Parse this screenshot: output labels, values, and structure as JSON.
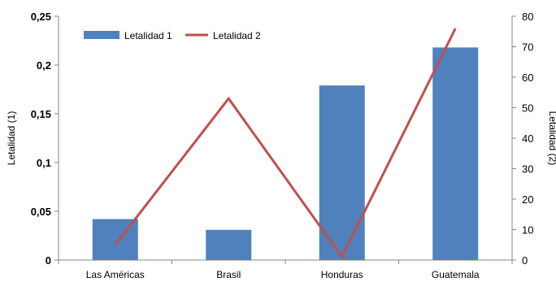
{
  "chart_data": {
    "type": "bar+line",
    "categories": [
      "Las Américas",
      "Brasil",
      "Honduras",
      "Guatemala"
    ],
    "series": [
      {
        "name": "Letalidad 1",
        "type": "bar",
        "axis": "left",
        "values": [
          0.042,
          0.031,
          0.179,
          0.218
        ]
      },
      {
        "name": "Letalidad 2",
        "type": "line",
        "axis": "right",
        "values": [
          5,
          53,
          1,
          76
        ]
      }
    ],
    "ylabel_left": "Letalidad (1)",
    "ylabel_right": "Letalidad (2)",
    "ylim_left": [
      0,
      0.25
    ],
    "ylim_right": [
      0,
      80
    ],
    "yticks_left": [
      "0",
      "0,05",
      "0,1",
      "0,15",
      "0,2",
      "0,25"
    ],
    "yticks_right": [
      "0",
      "10",
      "20",
      "30",
      "40",
      "50",
      "60",
      "70",
      "80"
    ],
    "grid": false,
    "legend": "top-left",
    "colors": {
      "bar": "#4f81bd",
      "line": "#c0504d"
    }
  }
}
